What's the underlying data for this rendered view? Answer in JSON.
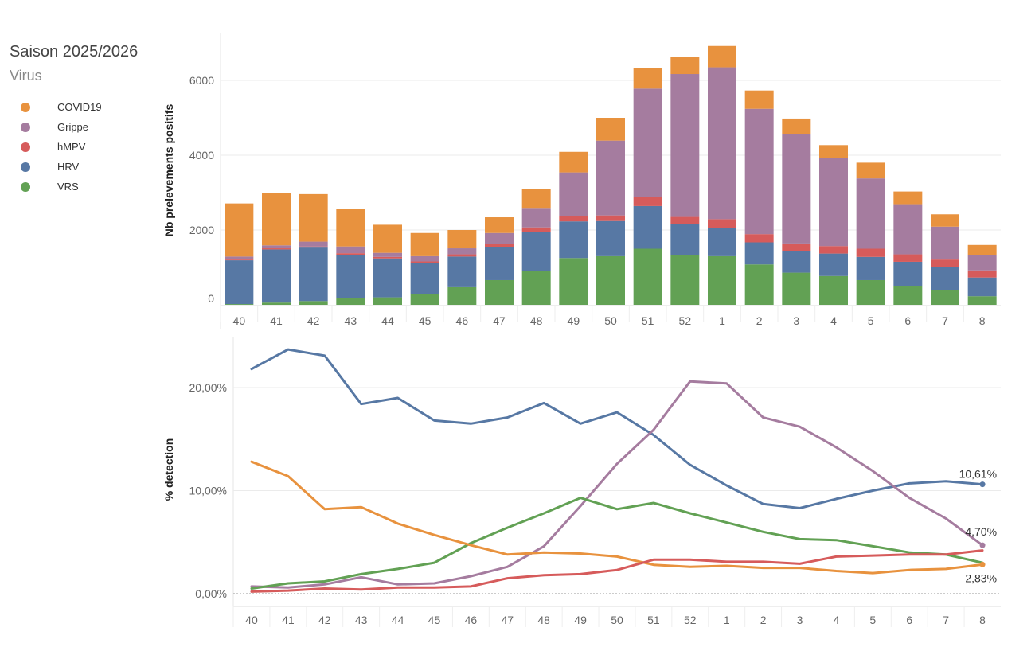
{
  "legend": {
    "title": "Saison 2025/2026",
    "subtitle": "Virus",
    "items": [
      {
        "name": "COVID19",
        "color": "#E8923E"
      },
      {
        "name": "Grippe",
        "color": "#A57C9F"
      },
      {
        "name": "hMPV",
        "color": "#D65B5B"
      },
      {
        "name": "HRV",
        "color": "#5778A4"
      },
      {
        "name": "VRS",
        "color": "#62A154"
      }
    ]
  },
  "chart_data": [
    {
      "type": "bar",
      "stacked": true,
      "title": "",
      "xlabel": "",
      "ylabel": "Nb prelevements positifs",
      "ylim": [
        0,
        7000
      ],
      "yticks": [
        0,
        2000,
        4000,
        6000
      ],
      "yticklabels": [
        "0",
        "2000",
        "4000",
        "6000"
      ],
      "categories": [
        "40",
        "41",
        "42",
        "43",
        "44",
        "45",
        "46",
        "47",
        "48",
        "49",
        "50",
        "51",
        "52",
        "1",
        "2",
        "3",
        "4",
        "5",
        "6",
        "7",
        "8"
      ],
      "series": [
        {
          "name": "VRS",
          "color": "#62A154",
          "values": [
            20,
            60,
            100,
            170,
            200,
            290,
            470,
            660,
            900,
            1250,
            1300,
            1500,
            1340,
            1300,
            1080,
            860,
            770,
            660,
            500,
            390,
            230
          ]
        },
        {
          "name": "HRV",
          "color": "#5778A4",
          "values": [
            1170,
            1420,
            1430,
            1170,
            1040,
            820,
            820,
            880,
            1050,
            980,
            940,
            1140,
            810,
            760,
            590,
            580,
            600,
            620,
            650,
            610,
            500
          ]
        },
        {
          "name": "hMPV",
          "color": "#D65B5B",
          "values": [
            20,
            30,
            30,
            40,
            40,
            50,
            60,
            80,
            120,
            140,
            150,
            240,
            200,
            230,
            220,
            200,
            200,
            220,
            200,
            210,
            190
          ]
        },
        {
          "name": "Grippe",
          "color": "#A57C9F",
          "values": [
            80,
            80,
            130,
            180,
            110,
            140,
            160,
            300,
            520,
            1170,
            2000,
            2900,
            3820,
            4060,
            3350,
            2920,
            2360,
            1880,
            1340,
            880,
            420
          ]
        },
        {
          "name": "COVID19",
          "color": "#E8923E",
          "values": [
            1420,
            1410,
            1270,
            1010,
            750,
            620,
            490,
            420,
            500,
            550,
            610,
            540,
            460,
            570,
            490,
            420,
            340,
            420,
            340,
            330,
            260
          ]
        }
      ]
    },
    {
      "type": "line",
      "title": "",
      "xlabel": "",
      "ylabel": "% detection",
      "ylim": [
        0,
        25
      ],
      "yticks": [
        0,
        10,
        20
      ],
      "yticklabels": [
        "0,00%",
        "10,00%",
        "20,00%"
      ],
      "categories": [
        "40",
        "41",
        "42",
        "43",
        "44",
        "45",
        "46",
        "47",
        "48",
        "49",
        "50",
        "51",
        "52",
        "1",
        "2",
        "3",
        "4",
        "5",
        "6",
        "7",
        "8"
      ],
      "series": [
        {
          "name": "HRV",
          "color": "#5778A4",
          "values": [
            21.8,
            23.7,
            23.1,
            18.4,
            19.0,
            16.8,
            16.5,
            17.1,
            18.5,
            16.5,
            17.6,
            15.4,
            12.5,
            10.5,
            8.7,
            8.3,
            9.2,
            10.0,
            10.7,
            10.9,
            10.61
          ]
        },
        {
          "name": "Grippe",
          "color": "#A57C9F",
          "values": [
            0.7,
            0.6,
            0.9,
            1.6,
            0.9,
            1.0,
            1.7,
            2.6,
            4.6,
            8.5,
            12.6,
            15.9,
            20.6,
            20.4,
            17.1,
            16.2,
            14.2,
            11.9,
            9.3,
            7.3,
            4.7
          ]
        },
        {
          "name": "VRS",
          "color": "#62A154",
          "values": [
            0.5,
            1.0,
            1.2,
            1.9,
            2.4,
            3.0,
            4.9,
            6.4,
            7.8,
            9.3,
            8.2,
            8.8,
            7.8,
            6.9,
            6.0,
            5.3,
            5.2,
            4.6,
            4.0,
            3.8,
            3.0
          ]
        },
        {
          "name": "COVID19",
          "color": "#E8923E",
          "values": [
            12.8,
            11.4,
            8.2,
            8.4,
            6.8,
            5.7,
            4.7,
            3.8,
            4.0,
            3.9,
            3.6,
            2.8,
            2.6,
            2.7,
            2.5,
            2.5,
            2.2,
            2.0,
            2.3,
            2.4,
            2.83
          ]
        },
        {
          "name": "hMPV",
          "color": "#D65B5B",
          "values": [
            0.2,
            0.3,
            0.5,
            0.4,
            0.6,
            0.6,
            0.7,
            1.5,
            1.8,
            1.9,
            2.3,
            3.3,
            3.3,
            3.1,
            3.1,
            2.9,
            3.6,
            3.7,
            3.8,
            3.8,
            4.2
          ]
        }
      ],
      "end_labels": [
        {
          "series": "HRV",
          "text": "10,61%"
        },
        {
          "series": "Grippe",
          "text": "4,70%"
        },
        {
          "series": "COVID19",
          "text": "2,83%"
        }
      ]
    }
  ]
}
